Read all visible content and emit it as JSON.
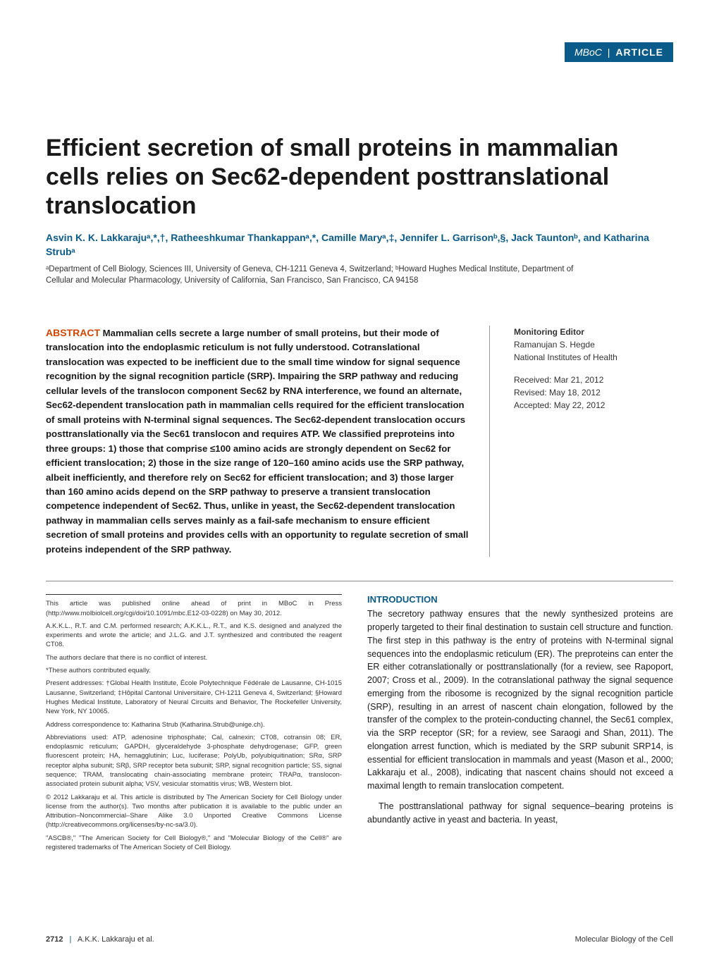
{
  "header": {
    "journal": "MBoC",
    "label": "ARTICLE",
    "bg_color": "#0a5a8a",
    "text_color": "#ffffff"
  },
  "title": "Efficient secretion of small proteins in mammalian cells relies on Sec62-dependent posttranslational translocation",
  "authors": "Asvin K. K. Lakkarajuᵃ,*,†, Ratheeshkumar Thankappanᵃ,*, Camille Maryᵃ,‡, Jennifer L. Garrisonᵇ,§, Jack Tauntonᵇ, and Katharina Strubᵃ",
  "affiliations": "ᵃDepartment of Cell Biology, Sciences III, University of Geneva, CH-1211 Geneva 4, Switzerland; ᵇHoward Hughes Medical Institute, Department of Cellular and Molecular Pharmacology, University of California, San Francisco, San Francisco, CA 94158",
  "abstract": {
    "label": "ABSTRACT",
    "label_color": "#d64500",
    "text": "Mammalian cells secrete a large number of small proteins, but their mode of translocation into the endoplasmic reticulum is not fully understood. Cotranslational translocation was expected to be inefficient due to the small time window for signal sequence recognition by the signal recognition particle (SRP). Impairing the SRP pathway and reducing cellular levels of the translocon component Sec62 by RNA interference, we found an alternate, Sec62-dependent translocation path in mammalian cells required for the efficient translocation of small proteins with N-terminal signal sequences. The Sec62-dependent translocation occurs posttranslationally via the Sec61 translocon and requires ATP. We classified preproteins into three groups: 1) those that comprise ≤100 amino acids are strongly dependent on Sec62 for efficient translocation; 2) those in the size range of 120–160 amino acids use the SRP pathway, albeit inefficiently, and therefore rely on Sec62 for efficient translocation; and 3) those larger than 160 amino acids depend on the SRP pathway to preserve a transient translocation competence independent of Sec62. Thus, unlike in yeast, the Sec62-dependent translocation pathway in mammalian cells serves mainly as a fail-safe mechanism to ensure efficient secretion of small proteins and provides cells with an opportunity to regulate secretion of small proteins independent of the SRP pathway."
  },
  "sidebar": {
    "editor_label": "Monitoring Editor",
    "editor_name": "Ramanujan S. Hegde",
    "editor_affil": "National Institutes of Health",
    "received": "Received: Mar 21, 2012",
    "revised": "Revised: May 18, 2012",
    "accepted": "Accepted: May 22, 2012"
  },
  "footnotes": {
    "p1": "This article was published online ahead of print in MBoC in Press (http://www.molbiolcell.org/cgi/doi/10.1091/mbc.E12-03-0228) on May 30, 2012.",
    "p2": "A.K.K.L., R.T. and C.M. performed research; A.K.K.L., R.T., and K.S. designed and analyzed the experiments and wrote the article; and J.L.G. and J.T. synthesized and contributed the reagent CT08.",
    "p3": "The authors declare that there is no conflict of interest.",
    "p4": "*These authors contributed equally.",
    "p5": "Present addresses: †Global Health Institute, École Polytechnique Fédérale de Lausanne, CH-1015 Lausanne, Switzerland; ‡Hôpital Cantonal Universitaire, CH-1211 Geneva 4, Switzerland; §Howard Hughes Medical Institute, Laboratory of Neural Circuits and Behavior, The Rockefeller University, New York, NY 10065.",
    "p6": "Address correspondence to: Katharina Strub (Katharina.Strub@unige.ch).",
    "p7": "Abbreviations used: ATP, adenosine triphosphate; Cal, calnexin; CT08, cotransin 08; ER, endoplasmic reticulum; GAPDH, glyceraldehyde 3-phosphate dehydrogenase; GFP, green fluorescent protein; HA, hemagglutinin; Luc, luciferase; PolyUb, polyubiquitination; SRα, SRP receptor alpha subunit; SRβ, SRP receptor beta subunit; SRP, signal recognition particle; SS, signal sequence; TRAM, translocating chain-associating membrane protein; TRAPα, translocon-associated protein subunit alpha; VSV, vesicular stomatitis virus; WB, Western blot.",
    "p8": "© 2012 Lakkaraju et al. This article is distributed by The American Society for Cell Biology under license from the author(s). Two months after publication it is available to the public under an Attribution–Noncommercial–Share Alike 3.0 Unported Creative Commons License (http://creativecommons.org/licenses/by-nc-sa/3.0).",
    "p9": "\"ASCB®,\" \"The American Society for Cell Biology®,\" and \"Molecular Biology of the Cell®\" are registered trademarks of The American Society of Cell Biology."
  },
  "introduction": {
    "heading": "INTRODUCTION",
    "heading_color": "#0a5a8a",
    "p1": "The secretory pathway ensures that the newly synthesized proteins are properly targeted to their final destination to sustain cell structure and function. The first step in this pathway is the entry of proteins with N-terminal signal sequences into the endoplasmic reticulum (ER). The preproteins can enter the ER either cotranslationally or posttranslationally (for a review, see Rapoport, 2007; Cross et al., 2009). In the cotranslational pathway the signal sequence emerging from the ribosome is recognized by the signal recognition particle (SRP), resulting in an arrest of nascent chain elongation, followed by the transfer of the complex to the protein-conducting channel, the Sec61 complex, via the SRP receptor (SR; for a review, see Saraogi and Shan, 2011). The elongation arrest function, which is mediated by the SRP subunit SRP14, is essential for efficient translocation in mammals and yeast (Mason et al., 2000; Lakkaraju et al., 2008), indicating that nascent chains should not exceed a maximal length to remain translocation competent.",
    "p2": "The posttranslational pathway for signal sequence–bearing proteins is abundantly active in yeast and bacteria. In yeast,"
  },
  "footer": {
    "page_number": "2712",
    "left_text": "A.K.K. Lakkaraju et al.",
    "right_text": "Molecular Biology of the Cell"
  },
  "styling": {
    "page_bg": "#ffffff",
    "title_fontsize": 34,
    "title_color": "#1a1a1a",
    "author_color": "#0a5a8a",
    "body_fontsize": 12.5,
    "footnote_fontsize": 9.5,
    "abstract_fontsize": 13.2,
    "rule_color": "#888888"
  }
}
